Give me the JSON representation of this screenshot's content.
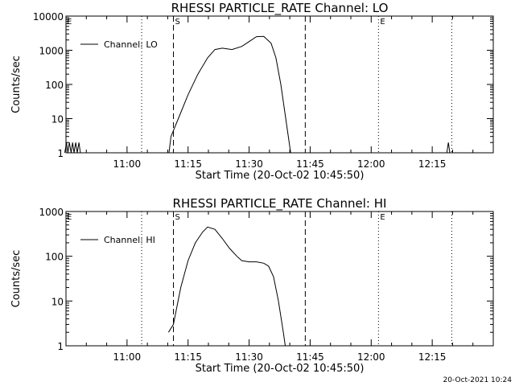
{
  "footer": {
    "timestamp": "20-Oct-2021 10:24"
  },
  "chart_data": [
    {
      "type": "line",
      "title": "RHESSI PARTICLE_RATE Channel: LO",
      "xlabel": "Start Time (20-Oct-02 10:45:50)",
      "ylabel": "Counts/sec",
      "yscale": "log",
      "ylim": [
        1,
        10000
      ],
      "xlim": [
        10.75,
        12.5
      ],
      "x_unit": "hours (UT)",
      "x_ticks": [
        11.0,
        11.25,
        11.5,
        11.75,
        12.0,
        12.25
      ],
      "x_tick_labels": [
        "11:00",
        "11:15",
        "11:30",
        "11:45",
        "12:00",
        "12:15"
      ],
      "y_ticks": [
        1,
        10,
        100,
        1000,
        10000
      ],
      "y_tick_labels": [
        "1",
        "10",
        "100",
        "1000",
        "10000"
      ],
      "legend": {
        "position": "top-left",
        "entries": [
          "Channel: LO"
        ]
      },
      "markers": [
        {
          "label": "S",
          "x": 11.19,
          "style": "dashed"
        },
        {
          "label": "",
          "x": 11.73,
          "style": "dashed"
        },
        {
          "label": "",
          "x": 11.06,
          "style": "dotted"
        },
        {
          "label": "E",
          "x": 12.03,
          "style": "dotted"
        },
        {
          "label": "",
          "x": 12.33,
          "style": "dotted"
        }
      ],
      "corner_label": "E",
      "series": [
        {
          "name": "Channel: LO",
          "segments": [
            [
              [
                10.745,
                1
              ],
              [
                10.752,
                2
              ],
              [
                10.758,
                1
              ],
              [
                10.764,
                2
              ],
              [
                10.771,
                1
              ],
              [
                10.777,
                2
              ],
              [
                10.783,
                1
              ],
              [
                10.79,
                2
              ],
              [
                10.796,
                1
              ],
              [
                10.803,
                2
              ],
              [
                10.809,
                1
              ]
            ],
            [
              [
                11.172,
                1
              ],
              [
                11.18,
                3
              ],
              [
                11.21,
                10
              ],
              [
                11.25,
                50
              ],
              [
                11.29,
                200
              ],
              [
                11.33,
                600
              ],
              [
                11.36,
                1050
              ],
              [
                11.39,
                1150
              ],
              [
                11.43,
                1050
              ],
              [
                11.47,
                1300
              ],
              [
                11.5,
                1800
              ],
              [
                11.53,
                2500
              ],
              [
                11.56,
                2550
              ],
              [
                11.59,
                1600
              ],
              [
                11.61,
                600
              ],
              [
                11.63,
                100
              ],
              [
                11.65,
                10
              ],
              [
                11.67,
                1
              ]
            ],
            [
              [
                12.31,
                1
              ],
              [
                12.316,
                2
              ],
              [
                12.322,
                1
              ]
            ]
          ]
        }
      ]
    },
    {
      "type": "line",
      "title": "RHESSI PARTICLE_RATE Channel: HI",
      "xlabel": "Start Time (20-Oct-02 10:45:50)",
      "ylabel": "Counts/sec",
      "yscale": "log",
      "ylim": [
        1,
        1000
      ],
      "xlim": [
        10.75,
        12.5
      ],
      "x_unit": "hours (UT)",
      "x_ticks": [
        11.0,
        11.25,
        11.5,
        11.75,
        12.0,
        12.25
      ],
      "x_tick_labels": [
        "11:00",
        "11:15",
        "11:30",
        "11:45",
        "12:00",
        "12:15"
      ],
      "y_ticks": [
        1,
        10,
        100,
        1000
      ],
      "y_tick_labels": [
        "1",
        "10",
        "100",
        "1000"
      ],
      "legend": {
        "position": "top-left",
        "entries": [
          "Channel: HI"
        ]
      },
      "markers": [
        {
          "label": "S",
          "x": 11.19,
          "style": "dashed"
        },
        {
          "label": "",
          "x": 11.73,
          "style": "dashed"
        },
        {
          "label": "",
          "x": 11.06,
          "style": "dotted"
        },
        {
          "label": "E",
          "x": 12.03,
          "style": "dotted"
        },
        {
          "label": "",
          "x": 12.33,
          "style": "dotted"
        }
      ],
      "corner_label": "E",
      "series": [
        {
          "name": "Channel: HI",
          "segments": [
            [
              [
                11.17,
                2
              ],
              [
                11.19,
                3
              ],
              [
                11.22,
                20
              ],
              [
                11.25,
                80
              ],
              [
                11.28,
                200
              ],
              [
                11.31,
                350
              ],
              [
                11.33,
                450
              ],
              [
                11.36,
                400
              ],
              [
                11.39,
                250
              ],
              [
                11.42,
                150
              ],
              [
                11.45,
                100
              ],
              [
                11.47,
                80
              ],
              [
                11.5,
                75
              ],
              [
                11.53,
                75
              ],
              [
                11.56,
                70
              ],
              [
                11.58,
                60
              ],
              [
                11.6,
                35
              ],
              [
                11.62,
                10
              ],
              [
                11.64,
                2
              ],
              [
                11.648,
                1
              ]
            ]
          ]
        }
      ]
    }
  ]
}
